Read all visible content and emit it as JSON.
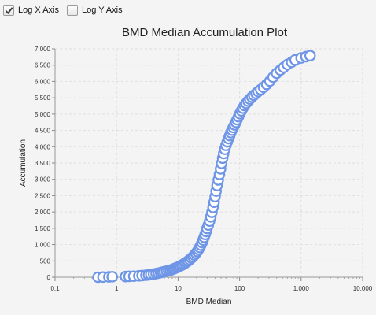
{
  "toolbar": {
    "log_x": {
      "label": "Log X Axis",
      "checked": true
    },
    "log_y": {
      "label": "Log Y Axis",
      "checked": false
    }
  },
  "colors": {
    "marker_stroke": "#6f95e6",
    "marker_fill": "#ffffff",
    "grid": "#dedede",
    "plot_bg": "#f4f4f4"
  },
  "chart_data": {
    "type": "scatter",
    "title": "BMD Median Accumulation Plot",
    "xlabel": "BMD Median",
    "ylabel": "Accumulation",
    "x_scale": "log",
    "xlim": [
      0.1,
      10000
    ],
    "ylim": [
      0,
      7000
    ],
    "x_ticks": [
      0.1,
      1,
      10,
      100,
      1000,
      10000
    ],
    "x_tick_labels": [
      "0.1",
      "1",
      "10",
      "100",
      "1,000",
      "10,000"
    ],
    "y_ticks": [
      0,
      500,
      1000,
      1500,
      2000,
      2500,
      3000,
      3500,
      4000,
      4500,
      5000,
      5500,
      6000,
      6500,
      7000
    ],
    "y_tick_labels": [
      "0",
      "500",
      "1,000",
      "1,500",
      "2,000",
      "2,500",
      "3,000",
      "3,500",
      "4,000",
      "4,500",
      "5,000",
      "5,500",
      "6,000",
      "6,500",
      "7,000"
    ],
    "grid": true,
    "legend": "none",
    "points": [
      [
        0.5,
        0
      ],
      [
        0.6,
        5
      ],
      [
        0.75,
        10
      ],
      [
        0.85,
        15
      ],
      [
        1.4,
        20
      ],
      [
        1.6,
        25
      ],
      [
        1.9,
        30
      ],
      [
        2.3,
        40
      ],
      [
        2.6,
        50
      ],
      [
        3.0,
        60
      ],
      [
        3.3,
        70
      ],
      [
        3.6,
        80
      ],
      [
        4.0,
        95
      ],
      [
        4.4,
        110
      ],
      [
        4.8,
        125
      ],
      [
        5.2,
        140
      ],
      [
        5.6,
        155
      ],
      [
        6.0,
        170
      ],
      [
        6.5,
        185
      ],
      [
        7.0,
        200
      ],
      [
        7.5,
        215
      ],
      [
        8.0,
        235
      ],
      [
        8.5,
        255
      ],
      [
        9.0,
        275
      ],
      [
        9.6,
        295
      ],
      [
        10.2,
        320
      ],
      [
        10.8,
        345
      ],
      [
        11.5,
        370
      ],
      [
        12.2,
        400
      ],
      [
        13.0,
        430
      ],
      [
        13.8,
        465
      ],
      [
        14.6,
        500
      ],
      [
        15.5,
        540
      ],
      [
        16.5,
        585
      ],
      [
        17.5,
        630
      ],
      [
        18.5,
        680
      ],
      [
        19.5,
        735
      ],
      [
        20.5,
        790
      ],
      [
        21.5,
        850
      ],
      [
        22.5,
        915
      ],
      [
        23.5,
        985
      ],
      [
        24.5,
        1060
      ],
      [
        25.5,
        1140
      ],
      [
        26.5,
        1225
      ],
      [
        27.5,
        1310
      ],
      [
        28.5,
        1400
      ],
      [
        29.5,
        1495
      ],
      [
        31,
        1600
      ],
      [
        32.5,
        1720
      ],
      [
        34,
        1850
      ],
      [
        35.5,
        1990
      ],
      [
        37,
        2140
      ],
      [
        38.5,
        2300
      ],
      [
        40,
        2470
      ],
      [
        41.5,
        2640
      ],
      [
        43,
        2810
      ],
      [
        45,
        2980
      ],
      [
        47,
        3150
      ],
      [
        49,
        3320
      ],
      [
        51,
        3490
      ],
      [
        53,
        3650
      ],
      [
        55,
        3790
      ],
      [
        57.5,
        3920
      ],
      [
        60,
        4040
      ],
      [
        63,
        4150
      ],
      [
        66,
        4250
      ],
      [
        69,
        4340
      ],
      [
        72,
        4430
      ],
      [
        75,
        4510
      ],
      [
        79,
        4590
      ],
      [
        83,
        4670
      ],
      [
        87,
        4750
      ],
      [
        91,
        4830
      ],
      [
        96,
        4920
      ],
      [
        101,
        5010
      ],
      [
        107,
        5100
      ],
      [
        113,
        5180
      ],
      [
        120,
        5260
      ],
      [
        128,
        5330
      ],
      [
        137,
        5400
      ],
      [
        147,
        5460
      ],
      [
        158,
        5520
      ],
      [
        170,
        5575
      ],
      [
        185,
        5630
      ],
      [
        200,
        5690
      ],
      [
        220,
        5750
      ],
      [
        245,
        5820
      ],
      [
        275,
        5910
      ],
      [
        310,
        6010
      ],
      [
        350,
        6130
      ],
      [
        400,
        6250
      ],
      [
        460,
        6350
      ],
      [
        520,
        6430
      ],
      [
        600,
        6520
      ],
      [
        700,
        6590
      ],
      [
        800,
        6660
      ],
      [
        1000,
        6720
      ],
      [
        1200,
        6760
      ],
      [
        1400,
        6790
      ]
    ]
  }
}
